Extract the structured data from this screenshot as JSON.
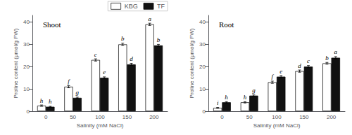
{
  "chart_data": [
    {
      "type": "bar",
      "title": "Shoot",
      "categories": [
        "0",
        "50",
        "100",
        "150",
        "200"
      ],
      "xlabel": "Salinity (mM NaCl)",
      "ylabel": "Proline content (μmol/g FW)",
      "series": [
        {
          "name": "KBG",
          "color": "#ffffff",
          "values": [
            2.5,
            11.0,
            23.0,
            30.0,
            39.0
          ],
          "errors": [
            0.3,
            0.5,
            0.5,
            0.5,
            0.5
          ],
          "annotations": [
            "h",
            "f",
            "c",
            "b",
            "a"
          ]
        },
        {
          "name": "TF",
          "color": "#111111",
          "values": [
            2.0,
            6.0,
            15.0,
            21.0,
            29.5
          ],
          "errors": [
            0.2,
            0.3,
            0.4,
            0.5,
            0.5
          ],
          "annotations": [
            "h",
            "g",
            "e",
            "d",
            "b"
          ]
        }
      ],
      "ylim": [
        0,
        43
      ],
      "yticks": [
        0,
        10,
        20,
        30,
        40
      ],
      "grid": false,
      "legend": "upper right"
    },
    {
      "type": "bar",
      "title": "Root",
      "categories": [
        "0",
        "50",
        "100",
        "150",
        "200"
      ],
      "xlabel": "Salinity (mM NaCl)",
      "ylabel": "Proline content (μmol/g FW)",
      "series": [
        {
          "name": "KBG",
          "color": "#ffffff",
          "values": [
            1.5,
            4.0,
            13.0,
            18.0,
            21.5
          ],
          "errors": [
            0.2,
            0.3,
            0.5,
            0.5,
            0.4
          ],
          "annotations": [
            "i",
            "h",
            "f",
            "d",
            "b"
          ]
        },
        {
          "name": "TF",
          "color": "#111111",
          "values": [
            4.0,
            7.0,
            15.5,
            20.0,
            24.0
          ],
          "errors": [
            0.3,
            0.3,
            0.5,
            0.5,
            0.5
          ],
          "annotations": [
            "h",
            "g",
            "e",
            "c",
            "a"
          ]
        }
      ],
      "ylim": [
        0,
        43
      ],
      "yticks": [
        0,
        10,
        20,
        30,
        40
      ],
      "grid": false
    }
  ]
}
